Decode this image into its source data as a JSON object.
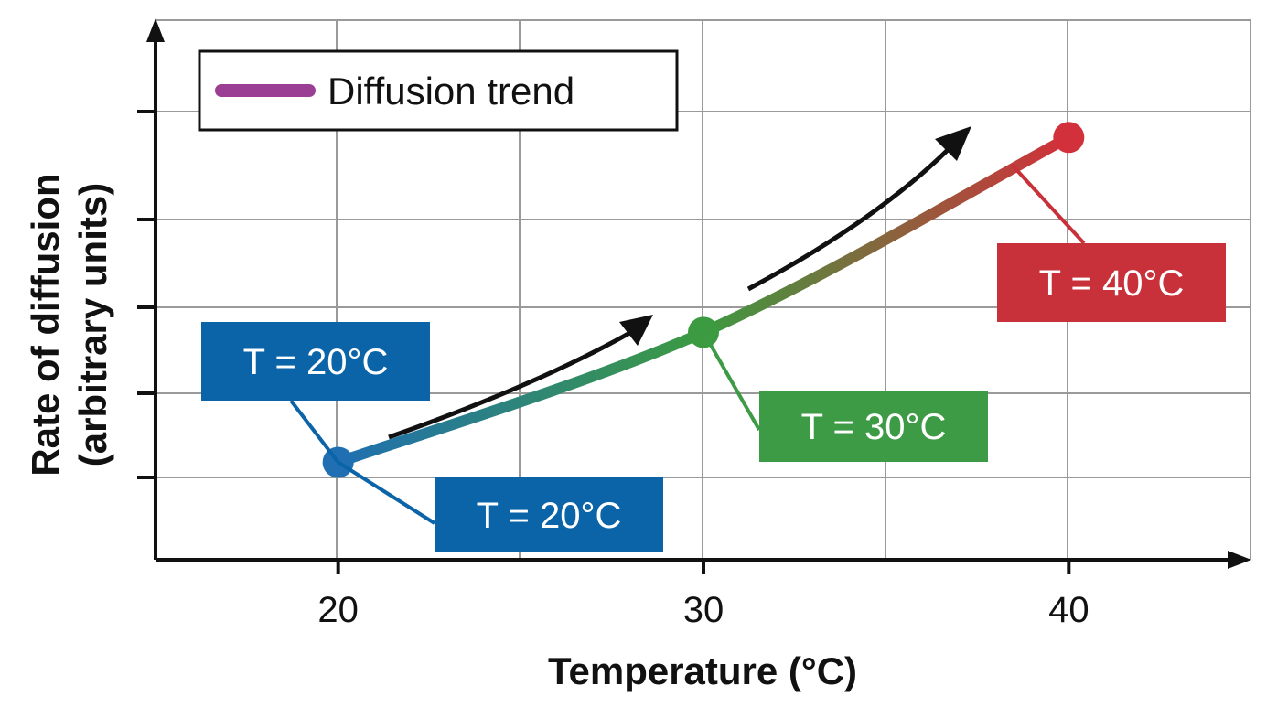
{
  "chart_data": {
    "type": "line",
    "xlabel": "Temperature (°C)",
    "ylabel": [
      "Rate of diffusion",
      "(arbitrary units)"
    ],
    "xlim": [
      15,
      45
    ],
    "ylim": [
      0,
      100
    ],
    "x_ticks": [
      20,
      30,
      40
    ],
    "y_tick_labels_shown": false,
    "grid": true,
    "legend": {
      "position": "top-left",
      "label": "Diffusion trend",
      "color": "#9b3f94"
    },
    "series": [
      {
        "name": "Diffusion trend",
        "x": [
          20,
          30,
          40
        ],
        "y": [
          18,
          42,
          78
        ],
        "gradient": [
          "#1f6fb2",
          "#3c9a40",
          "#d2303a"
        ]
      }
    ],
    "annotations": [
      {
        "text": "T = 20°C",
        "x": 20,
        "color": "#0b63a8"
      },
      {
        "text": "T = 20°C",
        "x": 20,
        "color": "#0b63a8"
      },
      {
        "text": "T = 30°C",
        "x": 30,
        "color": "#3d9a45"
      },
      {
        "text": "T = 40°C",
        "x": 40,
        "color": "#c9313a"
      }
    ],
    "trend_arrows": 2
  }
}
